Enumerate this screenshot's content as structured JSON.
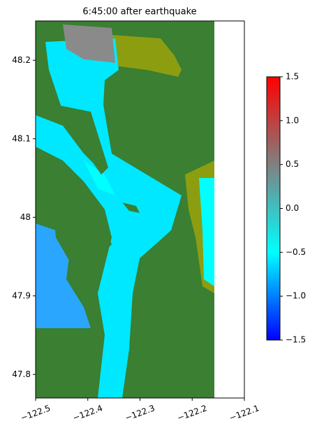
{
  "chart_data": {
    "type": "heatmap",
    "title": "6:45:00 after earthquake",
    "xlim": [
      -122.5,
      -122.1
    ],
    "ylim": [
      47.77,
      48.25
    ],
    "xticks": [
      {
        "value": -122.5,
        "label": "−122.5"
      },
      {
        "value": -122.4,
        "label": "−122.4"
      },
      {
        "value": -122.3,
        "label": "−122.3"
      },
      {
        "value": -122.2,
        "label": "−122.2"
      },
      {
        "value": -122.1,
        "label": "−122.1"
      }
    ],
    "yticks": [
      47.8,
      47.9,
      48.0,
      48.1,
      48.2
    ],
    "colorbar": {
      "clim": [
        -1.5,
        1.5
      ],
      "colormap": [
        "#0000ff",
        "#00ffff",
        "#808080",
        "#ff0000"
      ],
      "ticks": [
        1.5,
        {
          "value": 1.0,
          "label": "1.0"
        },
        0.5,
        {
          "value": 0.0,
          "label": "0.0"
        },
        {
          "value": -0.5,
          "label": "−0.5"
        },
        {
          "value": -1.0,
          "label": "−1.0"
        },
        {
          "value": -1.5,
          "label": "−1.5"
        }
      ]
    }
  }
}
